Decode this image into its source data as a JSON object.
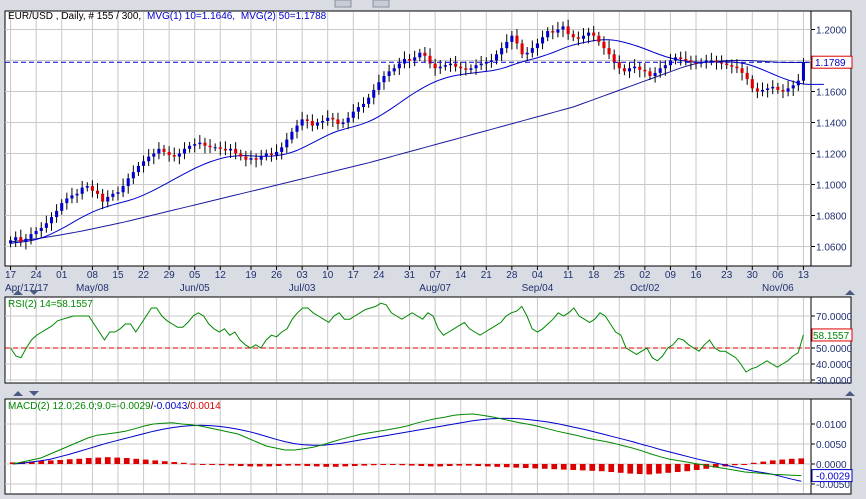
{
  "window": {
    "colors": {
      "bg": "#d9dde3",
      "panel": "#ffffff",
      "border": "#000000",
      "grid": "#c8c8c8",
      "blue": "#0000cc",
      "green": "#008800",
      "red": "#dd0000",
      "darkblue": "#1a1aa0",
      "text": "#000000",
      "axisblue": "#203070"
    }
  },
  "price_panel": {
    "legend_instrument": "EUR/USD , Daily, # 155 / 300,",
    "legend_mvg1": "MVG(1) 10=1.1646,",
    "legend_mvg2": "MVG(2) 50=1.1788",
    "last_price_label": "1.1789",
    "ytick_labels": [
      "1.2000",
      "1.1800",
      "1.1600",
      "1.1400",
      "1.1200",
      "1.1000",
      "1.0800",
      "1.0600"
    ],
    "xtick_labels": [
      "17",
      "24",
      "01",
      "08",
      "15",
      "22",
      "29",
      "05",
      "12",
      "19",
      "26",
      "03",
      "10",
      "17",
      "24",
      "31",
      "07",
      "14",
      "21",
      "28",
      "04",
      "11",
      "18",
      "25",
      "02",
      "09",
      "16",
      "23",
      "30",
      "06",
      "13"
    ],
    "month_labels": [
      "Apr/17/17",
      "May/08",
      "Jun/05",
      "Jul/03",
      "Aug/07",
      "Sep/04",
      "Oct/02",
      "Nov/06"
    ]
  },
  "rsi_panel": {
    "legend": "RSI(2) 14=58.1557",
    "last_label": "58.1557",
    "ytick_labels": [
      "70.0000",
      "50.0000",
      "40.0000",
      "30.0000"
    ]
  },
  "macd_panel": {
    "legend_prefix": "MACD(2) 12.0;26.0;9.0=",
    "legend_macd": "-0.0029",
    "legend_sep1": "/",
    "legend_signal": "-0.0043",
    "legend_sep2": "/",
    "legend_hist": "0.0014",
    "last_label": "-0.0029",
    "ytick_labels": [
      "0.0100",
      "0.0050",
      "0.0000",
      "-0.0050"
    ]
  },
  "chart_data": [
    {
      "type": "candlestick",
      "title": "EUR/USD Daily",
      "ylim": [
        1.05,
        1.21
      ],
      "reference_line": 1.1789,
      "ma10_last": 1.1646,
      "ma50_last": 1.1788,
      "closes": [
        1.064,
        1.066,
        1.063,
        1.065,
        1.068,
        1.07,
        1.072,
        1.075,
        1.079,
        1.083,
        1.088,
        1.091,
        1.093,
        1.094,
        1.098,
        1.099,
        1.096,
        1.094,
        1.089,
        1.092,
        1.094,
        1.095,
        1.099,
        1.104,
        1.108,
        1.112,
        1.115,
        1.118,
        1.12,
        1.123,
        1.121,
        1.119,
        1.118,
        1.12,
        1.123,
        1.125,
        1.126,
        1.127,
        1.125,
        1.124,
        1.124,
        1.123,
        1.122,
        1.123,
        1.12,
        1.118,
        1.116,
        1.117,
        1.116,
        1.118,
        1.12,
        1.119,
        1.121,
        1.124,
        1.129,
        1.134,
        1.138,
        1.142,
        1.141,
        1.138,
        1.14,
        1.141,
        1.143,
        1.142,
        1.139,
        1.14,
        1.143,
        1.147,
        1.15,
        1.152,
        1.156,
        1.161,
        1.166,
        1.17,
        1.173,
        1.175,
        1.178,
        1.181,
        1.18,
        1.182,
        1.185,
        1.183,
        1.178,
        1.175,
        1.176,
        1.177,
        1.178,
        1.176,
        1.175,
        1.174,
        1.175,
        1.177,
        1.178,
        1.179,
        1.18,
        1.184,
        1.188,
        1.192,
        1.196,
        1.191,
        1.184,
        1.185,
        1.188,
        1.191,
        1.195,
        1.199,
        1.198,
        1.2,
        1.202,
        1.197,
        1.195,
        1.194,
        1.196,
        1.198,
        1.196,
        1.192,
        1.188,
        1.184,
        1.179,
        1.175,
        1.173,
        1.175,
        1.176,
        1.174,
        1.173,
        1.17,
        1.172,
        1.175,
        1.177,
        1.18,
        1.182,
        1.181,
        1.18,
        1.179,
        1.178,
        1.179,
        1.18,
        1.18,
        1.179,
        1.178,
        1.177,
        1.176,
        1.175,
        1.172,
        1.168,
        1.162,
        1.16,
        1.161,
        1.162,
        1.163,
        1.161,
        1.16,
        1.162,
        1.164,
        1.167,
        1.179
      ],
      "ma10": [
        1.062,
        1.0625,
        1.0628,
        1.0632,
        1.0638,
        1.0645,
        1.0655,
        1.0667,
        1.0682,
        1.0698,
        1.0715,
        1.0733,
        1.0752,
        1.0771,
        1.0789,
        1.0806,
        1.0822,
        1.0836,
        1.0848,
        1.0859,
        1.0869,
        1.0878,
        1.0887,
        1.0896,
        1.0906,
        1.0918,
        1.0932,
        1.0947,
        1.0963,
        1.098,
        1.0998,
        1.1016,
        1.1034,
        1.1052,
        1.107,
        1.1087,
        1.1104,
        1.1119,
        1.1133,
        1.1146,
        1.1157,
        1.1167,
        1.1175,
        1.1181,
        1.1184,
        1.1186,
        1.1186,
        1.1185,
        1.1183,
        1.1182,
        1.1182,
        1.1183,
        1.1186,
        1.1191,
        1.1198,
        1.1208,
        1.122,
        1.1235,
        1.1251,
        1.1268,
        1.1285,
        1.1302,
        1.1318,
        1.1333,
        1.1345,
        1.1355,
        1.1364,
        1.1373,
        1.1382,
        1.1393,
        1.1406,
        1.1421,
        1.1439,
        1.1459,
        1.148,
        1.1502,
        1.1525,
        1.1548,
        1.1571,
        1.1592,
        1.1612,
        1.1631,
        1.1648,
        1.1663,
        1.1676,
        1.1687,
        1.1696,
        1.1703,
        1.1709,
        1.1714,
        1.1718,
        1.1722,
        1.1726,
        1.173,
        1.1734,
        1.174,
        1.1748,
        1.1758,
        1.177,
        1.1781,
        1.1791,
        1.18,
        1.1809,
        1.1818,
        1.1828,
        1.1839,
        1.1851,
        1.1864,
        1.1878,
        1.189,
        1.19,
        1.1908,
        1.1915,
        1.1922,
        1.1928,
        1.1932,
        1.1934,
        1.1934,
        1.1931,
        1.1925,
        1.1917,
        1.1908,
        1.1898,
        1.1887,
        1.1875,
        1.1862,
        1.1849,
        1.1837,
        1.1826,
        1.1816,
        1.1808,
        1.1801,
        1.1796,
        1.1792,
        1.179,
        1.1789,
        1.1789,
        1.179,
        1.1791,
        1.1792,
        1.1792,
        1.1791,
        1.1788,
        1.1783,
        1.1776,
        1.1766,
        1.1754,
        1.1741,
        1.1727,
        1.1713,
        1.1699,
        1.1686,
        1.1674,
        1.1664,
        1.1655,
        1.1648,
        1.1646,
        1.1646,
        1.1646,
        1.1646
      ],
      "ma50": [
        1.063,
        1.0634,
        1.0638,
        1.0642,
        1.0646,
        1.065,
        1.0655,
        1.066,
        1.0665,
        1.067,
        1.0676,
        1.0682,
        1.0688,
        1.0694,
        1.07,
        1.0707,
        1.0714,
        1.0721,
        1.0728,
        1.0735,
        1.0742,
        1.0749,
        1.0756,
        1.0764,
        1.0772,
        1.078,
        1.0788,
        1.0796,
        1.0804,
        1.0812,
        1.082,
        1.0828,
        1.0836,
        1.0844,
        1.0852,
        1.086,
        1.0868,
        1.0876,
        1.0884,
        1.0892,
        1.09,
        1.0908,
        1.0916,
        1.0924,
        1.0932,
        1.094,
        1.0948,
        1.0956,
        1.0964,
        1.0972,
        1.098,
        1.0988,
        1.0996,
        1.1004,
        1.1012,
        1.102,
        1.1028,
        1.1036,
        1.1044,
        1.1052,
        1.106,
        1.1068,
        1.1076,
        1.1084,
        1.1092,
        1.11,
        1.1108,
        1.1116,
        1.1124,
        1.1132,
        1.114,
        1.1149,
        1.1158,
        1.1167,
        1.1176,
        1.1185,
        1.1194,
        1.1203,
        1.1212,
        1.1221,
        1.123,
        1.1239,
        1.1248,
        1.1257,
        1.1266,
        1.1275,
        1.1284,
        1.1293,
        1.1302,
        1.1311,
        1.132,
        1.1329,
        1.1338,
        1.1347,
        1.1356,
        1.1365,
        1.1374,
        1.1383,
        1.1392,
        1.1401,
        1.141,
        1.1419,
        1.1428,
        1.1437,
        1.1446,
        1.1455,
        1.1464,
        1.1473,
        1.1482,
        1.1491,
        1.15,
        1.1512,
        1.1524,
        1.1536,
        1.1548,
        1.156,
        1.1572,
        1.1584,
        1.1596,
        1.1608,
        1.162,
        1.1632,
        1.1644,
        1.1656,
        1.1668,
        1.168,
        1.1692,
        1.1704,
        1.1716,
        1.1728,
        1.174,
        1.1752,
        1.1762,
        1.1772,
        1.178,
        1.1786,
        1.179,
        1.1793,
        1.1795,
        1.1797,
        1.1799,
        1.18,
        1.1801,
        1.1801,
        1.18,
        1.1799,
        1.1797,
        1.1795,
        1.1793,
        1.1791,
        1.1789,
        1.1788,
        1.1787,
        1.1787,
        1.1787,
        1.1788,
        1.1788
      ]
    },
    {
      "type": "line",
      "title": "RSI(2) 14",
      "ylim": [
        30,
        80
      ],
      "reference_line": 50,
      "last": 58.1557,
      "values": [
        50,
        45,
        44,
        50,
        55,
        58,
        60,
        62,
        64,
        67,
        68,
        69,
        70,
        70,
        70,
        70,
        65,
        60,
        55,
        60,
        60,
        62,
        65,
        65,
        60,
        65,
        70,
        75,
        75,
        70,
        67,
        65,
        63,
        63,
        66,
        70,
        72,
        70,
        65,
        62,
        60,
        62,
        58,
        60,
        55,
        52,
        50,
        52,
        50,
        55,
        58,
        57,
        60,
        62,
        68,
        72,
        75,
        75,
        72,
        70,
        68,
        66,
        70,
        72,
        68,
        68,
        70,
        72,
        74,
        75,
        76,
        78,
        77,
        72,
        70,
        68,
        70,
        72,
        70,
        68,
        72,
        70,
        62,
        58,
        60,
        62,
        64,
        66,
        62,
        60,
        58,
        60,
        62,
        64,
        66,
        70,
        72,
        73,
        76,
        70,
        62,
        60,
        62,
        65,
        68,
        72,
        70,
        72,
        75,
        70,
        68,
        66,
        68,
        72,
        70,
        65,
        60,
        58,
        50,
        48,
        46,
        48,
        50,
        44,
        42,
        45,
        50,
        52,
        56,
        55,
        52,
        50,
        48,
        52,
        55,
        50,
        48,
        48,
        46,
        44,
        40,
        35,
        37,
        38,
        40,
        42,
        40,
        38,
        40,
        42,
        45,
        47,
        58.1557
      ]
    },
    {
      "type": "line",
      "title": "MACD(2) 12.0;26.0;9.0",
      "ylim": [
        -0.0065,
        0.0155
      ],
      "macd_last": -0.0029,
      "signal_last": -0.0043,
      "hist_last": 0.0014,
      "macd": [
        0,
        0.0005,
        0.001,
        0.0015,
        0.0025,
        0.0035,
        0.0045,
        0.0055,
        0.0065,
        0.0072,
        0.0075,
        0.0078,
        0.0082,
        0.0088,
        0.0095,
        0.01,
        0.0102,
        0.0103,
        0.01,
        0.0098,
        0.0095,
        0.009,
        0.0085,
        0.008,
        0.0075,
        0.0065,
        0.0055,
        0.0045,
        0.004,
        0.0035,
        0.0035,
        0.0038,
        0.0042,
        0.0048,
        0.0055,
        0.0062,
        0.0068,
        0.0074,
        0.0078,
        0.0082,
        0.0086,
        0.009,
        0.0095,
        0.0102,
        0.0108,
        0.0113,
        0.0117,
        0.0122,
        0.0124,
        0.0125,
        0.0122,
        0.0118,
        0.0113,
        0.0108,
        0.0103,
        0.0099,
        0.0094,
        0.0088,
        0.0082,
        0.0077,
        0.0072,
        0.0066,
        0.0061,
        0.0057,
        0.0052,
        0.0046,
        0.004,
        0.0033,
        0.0025,
        0.0018,
        0.0012,
        0.0008,
        0.0004,
        0.0,
        -0.0004,
        -0.0008,
        -0.0012,
        -0.0016,
        -0.002,
        -0.0022,
        -0.0024,
        -0.0026,
        -0.0027,
        -0.0028,
        -0.0029
      ],
      "signal": [
        0,
        0.0002,
        0.0005,
        0.0008,
        0.0012,
        0.0018,
        0.0024,
        0.0031,
        0.0038,
        0.0045,
        0.0052,
        0.0058,
        0.0064,
        0.007,
        0.0076,
        0.0082,
        0.0087,
        0.0091,
        0.0094,
        0.0096,
        0.0097,
        0.0096,
        0.0094,
        0.0091,
        0.0087,
        0.0082,
        0.0076,
        0.0069,
        0.0062,
        0.0056,
        0.0051,
        0.0048,
        0.0047,
        0.0047,
        0.0049,
        0.0052,
        0.0056,
        0.006,
        0.0064,
        0.0068,
        0.0072,
        0.0076,
        0.008,
        0.0084,
        0.0088,
        0.0092,
        0.0096,
        0.01,
        0.0104,
        0.0108,
        0.0111,
        0.0113,
        0.0114,
        0.0114,
        0.0113,
        0.0111,
        0.0108,
        0.0105,
        0.0101,
        0.0096,
        0.0091,
        0.0086,
        0.008,
        0.0074,
        0.0068,
        0.0062,
        0.0056,
        0.0049,
        0.0043,
        0.0036,
        0.003,
        0.0024,
        0.0018,
        0.0012,
        0.0007,
        0.0002,
        -0.0003,
        -0.0008,
        -0.0013,
        -0.0018,
        -0.0022,
        -0.0026,
        -0.0032,
        -0.0038,
        -0.0043
      ],
      "hist": [
        0.0004,
        0.0005,
        0.0006,
        0.0008,
        0.0009,
        0.001,
        0.0012,
        0.0013,
        0.0015,
        0.0016,
        0.0017,
        0.0016,
        0.0015,
        0.0013,
        0.0011,
        0.0009,
        0.0007,
        0.0005,
        0.0003,
        0.0001,
        -0.0001,
        -0.0002,
        -0.0003,
        -0.0004,
        -0.0005,
        -0.0006,
        -0.0006,
        -0.0006,
        -0.0005,
        -0.0004,
        -0.0004,
        -0.0005,
        -0.0006,
        -0.0007,
        -0.0007,
        -0.0006,
        -0.0005,
        -0.0004,
        -0.0003,
        -0.0002,
        -0.0002,
        -0.0003,
        -0.0004,
        -0.0005,
        -0.0006,
        -0.0006,
        -0.0005,
        -0.0004,
        -0.0004,
        -0.0005,
        -0.0006,
        -0.0007,
        -0.0008,
        -0.0009,
        -0.001,
        -0.0011,
        -0.0012,
        -0.0013,
        -0.0014,
        -0.0015,
        -0.0016,
        -0.0017,
        -0.0018,
        -0.002,
        -0.0022,
        -0.0024,
        -0.0025,
        -0.0026,
        -0.0024,
        -0.0022,
        -0.002,
        -0.0018,
        -0.0015,
        -0.0012,
        -0.0009,
        -0.0006,
        -0.0003,
        0.0,
        0.0003,
        0.0006,
        0.0009,
        0.0011,
        0.0013,
        0.0014
      ]
    }
  ]
}
